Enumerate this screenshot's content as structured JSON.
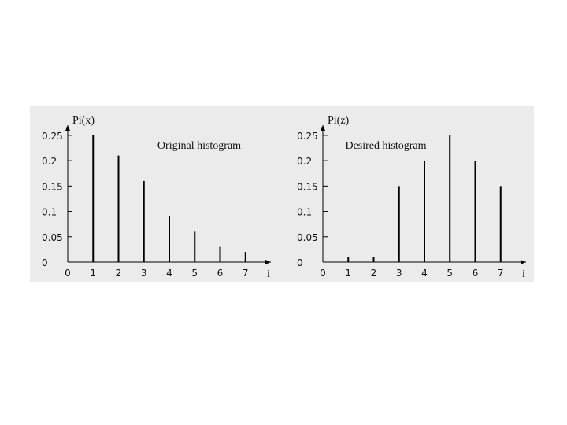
{
  "chart_data": [
    {
      "type": "stem",
      "title": "Original histogram",
      "ylabel": "Pi(x)",
      "xlabel": "i",
      "x": [
        1,
        2,
        3,
        4,
        5,
        6,
        7
      ],
      "values": [
        0.25,
        0.21,
        0.16,
        0.09,
        0.06,
        0.03,
        0.02
      ],
      "xlim": [
        0,
        8
      ],
      "ylim": [
        0,
        0.27
      ],
      "xticks": [
        0,
        1,
        2,
        3,
        4,
        5,
        6,
        7
      ],
      "yticks": [
        0,
        0.05,
        0.1,
        0.15,
        0.2,
        0.25
      ],
      "color": "#000000"
    },
    {
      "type": "stem",
      "title": "Desired histogram",
      "ylabel": "Pi(z)",
      "xlabel": "i",
      "x": [
        1,
        2,
        3,
        4,
        5,
        6,
        7
      ],
      "values": [
        0.01,
        0.01,
        0.15,
        0.2,
        0.25,
        0.2,
        0.15
      ],
      "xlim": [
        0,
        8
      ],
      "ylim": [
        0,
        0.27
      ],
      "xticks": [
        0,
        1,
        2,
        3,
        4,
        5,
        6,
        7
      ],
      "yticks": [
        0,
        0.05,
        0.1,
        0.15,
        0.2,
        0.25
      ],
      "color": "#000000"
    }
  ]
}
